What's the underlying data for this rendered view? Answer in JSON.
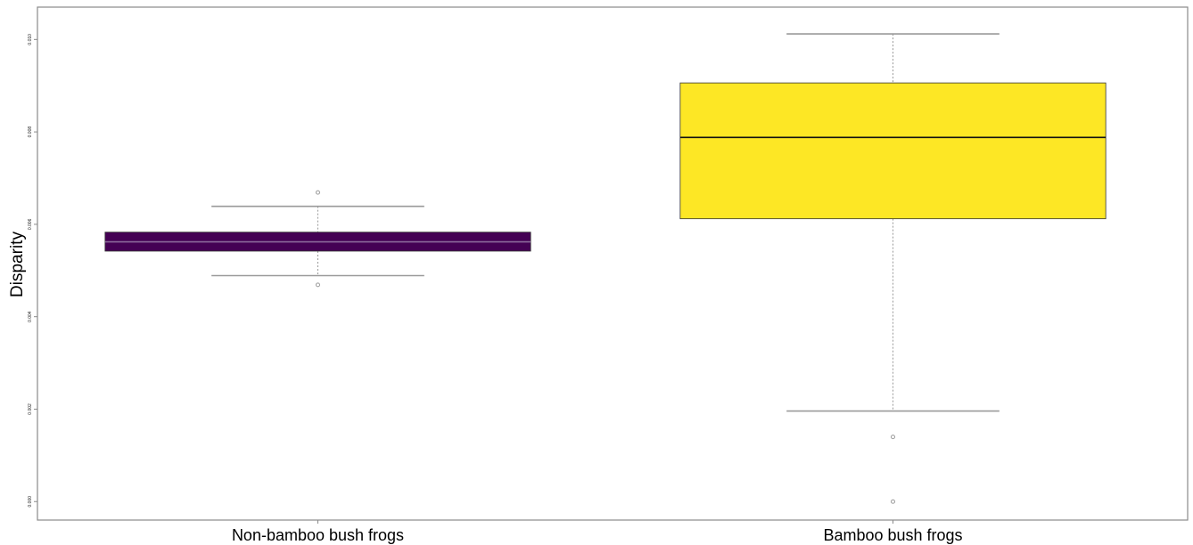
{
  "chart_data": {
    "type": "boxplot",
    "ylabel": "Disparity",
    "xlabel": "",
    "ylim": [
      -0.0004,
      0.0107
    ],
    "y_ticks": [
      0.0,
      0.002,
      0.004,
      0.006,
      0.008,
      0.01
    ],
    "y_tick_labels": [
      "0.000",
      "0.002",
      "0.004",
      "0.006",
      "0.008",
      "0.010"
    ],
    "categories": [
      "Non-bamboo bush frogs",
      "Bamboo bush frogs"
    ],
    "series": [
      {
        "category": "Non-bamboo bush frogs",
        "color": "#440154",
        "whisker_low": 0.00489,
        "q1": 0.00542,
        "median": 0.00562,
        "q3": 0.00583,
        "whisker_high": 0.00639,
        "outliers": [
          0.00469,
          0.00669
        ]
      },
      {
        "category": "Bamboo bush frogs",
        "color": "#FDE725",
        "whisker_low": 0.00196,
        "q1": 0.00612,
        "median": 0.00788,
        "q3": 0.00906,
        "whisker_high": 0.01012,
        "outliers": [
          0.0014,
          0.0
        ]
      }
    ],
    "grid": false,
    "legend": "none"
  }
}
